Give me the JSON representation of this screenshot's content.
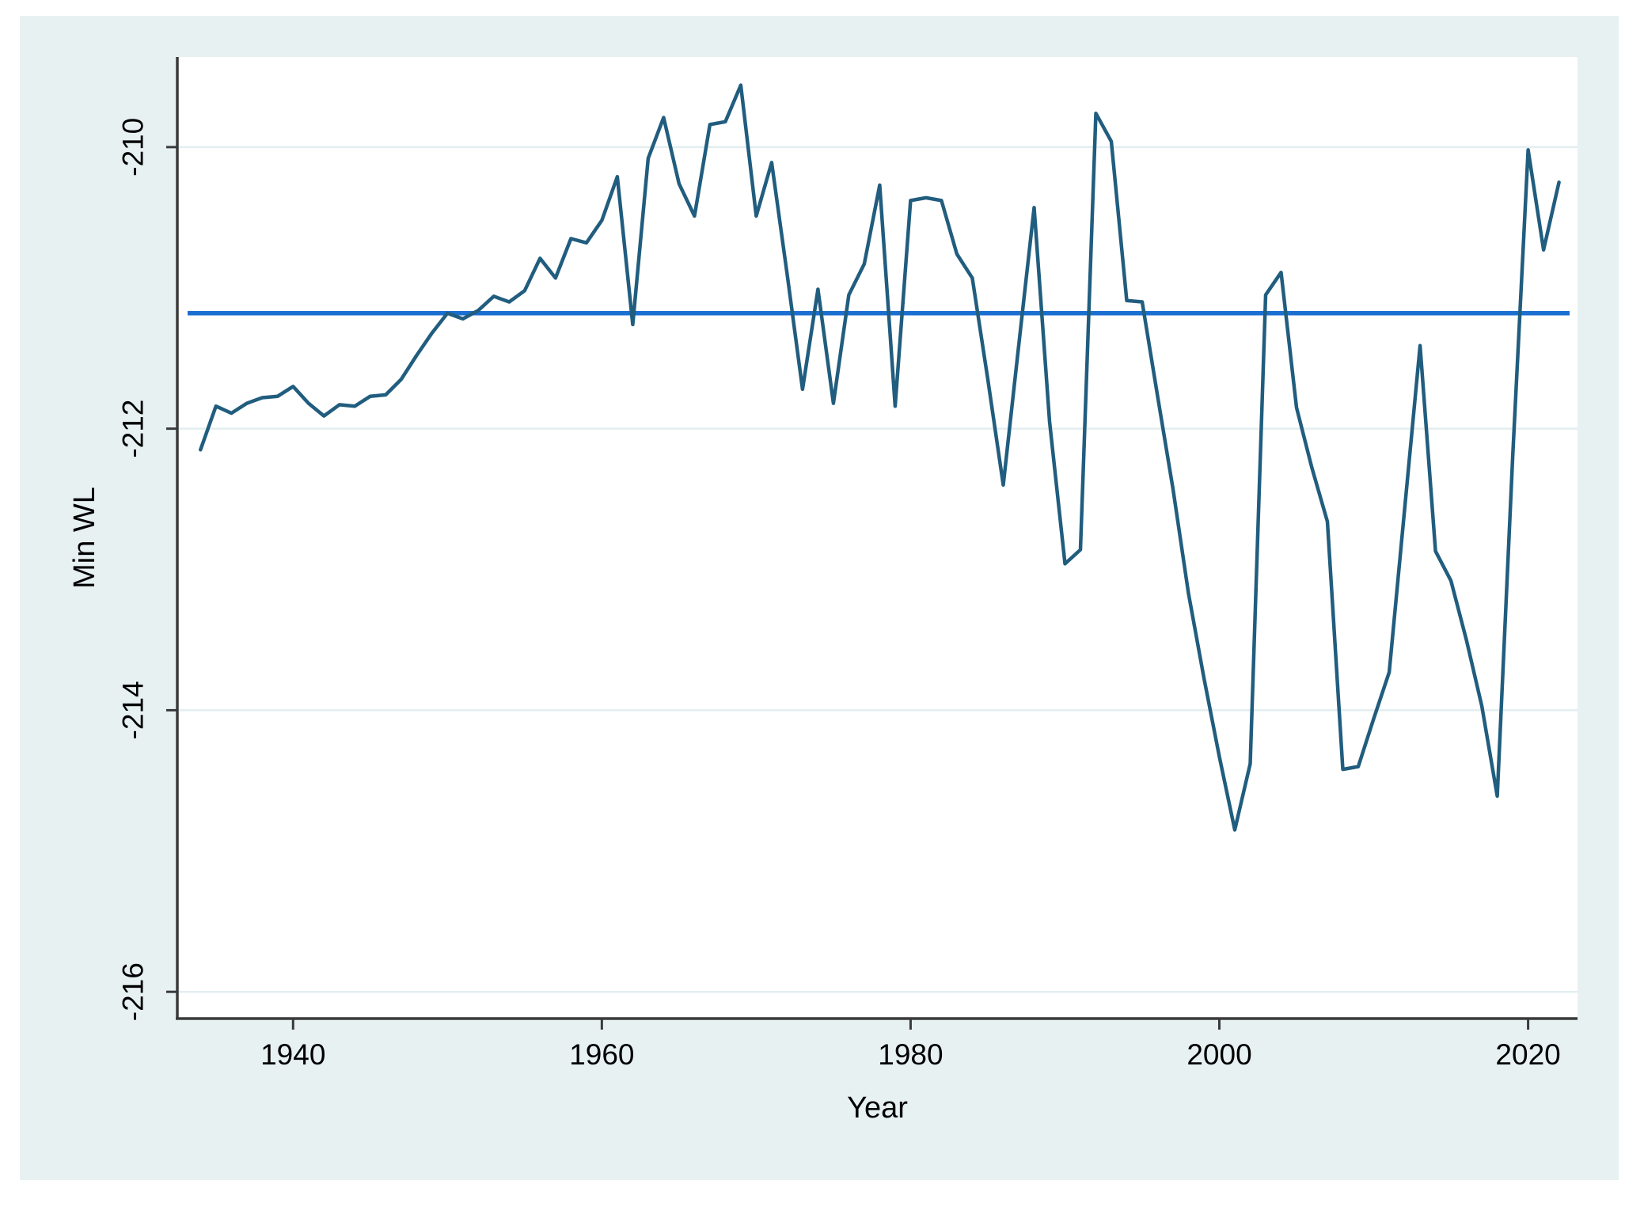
{
  "figure": {
    "background_color": "#e7f1f2",
    "plot_background_color": "#ffffff",
    "grid_color": "#e2eef0",
    "axis_color": "#3a3a3a",
    "text_color": "#000000"
  },
  "chart_data": {
    "type": "line",
    "title": "",
    "xlabel": "Year",
    "ylabel": "Min WL",
    "x_ticks": [
      1940,
      1960,
      1980,
      2000,
      2020
    ],
    "y_ticks": [
      -210,
      -212,
      -214,
      -216
    ],
    "xlim": [
      1932.5,
      2023.2
    ],
    "ylim": [
      -216.19,
      -209.36
    ],
    "grid": "horizontal-gridlines-only",
    "legend_position": "none",
    "series": [
      {
        "name": "Min WL",
        "color": "#215d7e",
        "x": [
          1934,
          1935,
          1936,
          1937,
          1938,
          1939,
          1940,
          1941,
          1942,
          1943,
          1944,
          1945,
          1946,
          1947,
          1948,
          1949,
          1950,
          1951,
          1952,
          1953,
          1954,
          1955,
          1956,
          1957,
          1958,
          1959,
          1960,
          1961,
          1962,
          1963,
          1964,
          1965,
          1966,
          1967,
          1968,
          1969,
          1970,
          1971,
          1972,
          1973,
          1974,
          1975,
          1976,
          1977,
          1978,
          1979,
          1980,
          1981,
          1982,
          1983,
          1984,
          1985,
          1986,
          1987,
          1988,
          1989,
          1990,
          1991,
          1992,
          1993,
          1994,
          1995,
          1996,
          1997,
          1998,
          1999,
          2000,
          2001,
          2002,
          2003,
          2004,
          2005,
          2006,
          2007,
          2008,
          2009,
          2010,
          2011,
          2012,
          2013,
          2014,
          2015,
          2016,
          2017,
          2018,
          2019,
          2020,
          2021,
          2022
        ],
        "y": [
          -212.15,
          -211.84,
          -211.89,
          -211.82,
          -211.78,
          -211.77,
          -211.7,
          -211.82,
          -211.91,
          -211.83,
          -211.84,
          -211.77,
          -211.76,
          -211.65,
          -211.48,
          -211.32,
          -211.18,
          -211.22,
          -211.16,
          -211.06,
          -211.1,
          -211.02,
          -210.79,
          -210.93,
          -210.65,
          -210.68,
          -210.52,
          -210.21,
          -211.26,
          -210.08,
          -209.79,
          -210.26,
          -210.49,
          -209.84,
          -209.82,
          -209.56,
          -210.49,
          -210.11,
          -210.9,
          -211.72,
          -211.01,
          -211.82,
          -211.05,
          -210.83,
          -210.27,
          -211.84,
          -210.38,
          -210.36,
          -210.38,
          -210.76,
          -210.93,
          -211.65,
          -212.4,
          -211.41,
          -210.43,
          -211.95,
          -212.96,
          -212.86,
          -209.76,
          -209.96,
          -211.09,
          -211.1,
          -211.77,
          -212.43,
          -213.17,
          -213.77,
          -214.33,
          -214.85,
          -214.38,
          -211.05,
          -210.89,
          -211.85,
          -212.28,
          -212.66,
          -214.42,
          -214.4,
          -214.06,
          -213.73,
          -212.57,
          -211.41,
          -212.87,
          -213.08,
          -213.5,
          -213.97,
          -214.61,
          -212.2,
          -210.02,
          -210.73,
          -210.25
        ]
      }
    ],
    "reference_line": {
      "orientation": "horizontal",
      "value": -211.18,
      "color": "#1b6fd1"
    }
  }
}
